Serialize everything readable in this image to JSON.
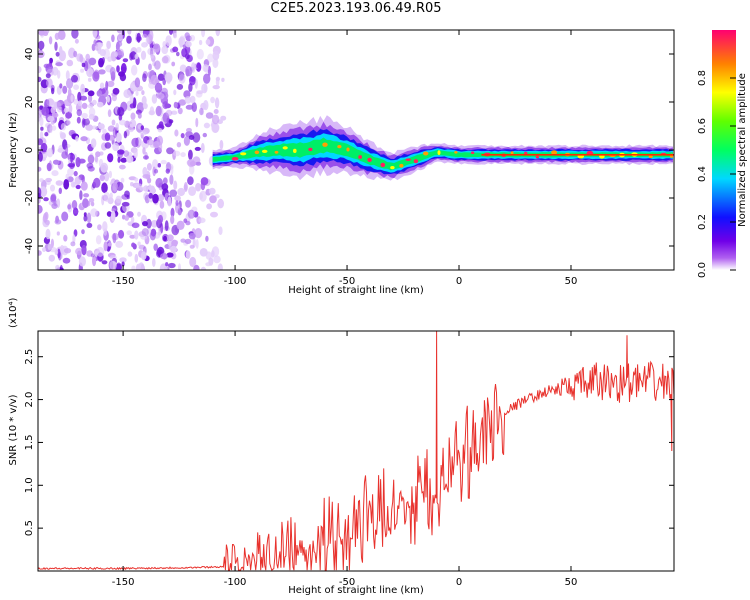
{
  "title": "C2E5.2023.193.06.49.R05",
  "chart_data": [
    {
      "type": "heatmap",
      "name": "spectrogram",
      "xlabel": "Height of straight line (km)",
      "ylabel": "Frequency (Hz)",
      "xlim": [
        -188,
        96
      ],
      "ylim": [
        -50,
        50
      ],
      "xticks": [
        -150,
        -100,
        -50,
        0,
        50
      ],
      "yticks": [
        -40,
        -20,
        0,
        20,
        40
      ],
      "colorbar": {
        "label": "Normalized spectral amplitude",
        "range": [
          0,
          1
        ],
        "ticks": [
          "0.0",
          "0.2",
          "0.4",
          "0.6",
          "0.8"
        ]
      },
      "noise_region": {
        "x_range": [
          -188,
          -105
        ],
        "y_range": [
          -50,
          50
        ],
        "amplitude": 0.15
      },
      "signal_ridge": {
        "x": [
          -110,
          -100,
          -90,
          -80,
          -70,
          -60,
          -50,
          -40,
          -30,
          -20,
          -10,
          0,
          20,
          50,
          96
        ],
        "center_freq": [
          -4,
          -3,
          -1,
          0,
          0,
          2,
          0,
          -4,
          -7,
          -4,
          -1,
          -2,
          -2,
          -2,
          -2
        ],
        "half_width": [
          2,
          2,
          4,
          5,
          6,
          6,
          5,
          4,
          3,
          3,
          2,
          2,
          2,
          2,
          2
        ]
      }
    },
    {
      "type": "line",
      "name": "snr",
      "xlabel": "Height of straight line (km)",
      "ylabel": "SNR (10 * v/v)",
      "yscale_label": "(x10⁴)",
      "xlim": [
        -188,
        96
      ],
      "ylim": [
        0,
        2.8
      ],
      "xticks": [
        -150,
        -100,
        -50,
        0,
        50
      ],
      "yticks": [
        "0.5",
        "1.0",
        "1.5",
        "2.0",
        "2.5"
      ],
      "series": [
        {
          "name": "SNR",
          "color": "#e8322d",
          "x": [
            -188,
            -150,
            -120,
            -105,
            -100,
            -90,
            -80,
            -70,
            -60,
            -50,
            -40,
            -30,
            -20,
            -10,
            0,
            10,
            20,
            30,
            40,
            50,
            60,
            70,
            80,
            96
          ],
          "y": [
            0.03,
            0.03,
            0.04,
            0.05,
            0.08,
            0.12,
            0.18,
            0.25,
            0.35,
            0.45,
            0.55,
            0.65,
            0.8,
            0.95,
            1.2,
            1.55,
            1.85,
            2.0,
            2.1,
            2.15,
            2.2,
            2.2,
            2.2,
            2.2
          ]
        }
      ],
      "spikes": [
        {
          "x": -10,
          "y": 2.8
        },
        {
          "x": 75,
          "y": 2.75
        },
        {
          "x": 95,
          "y": 1.4
        }
      ]
    }
  ]
}
